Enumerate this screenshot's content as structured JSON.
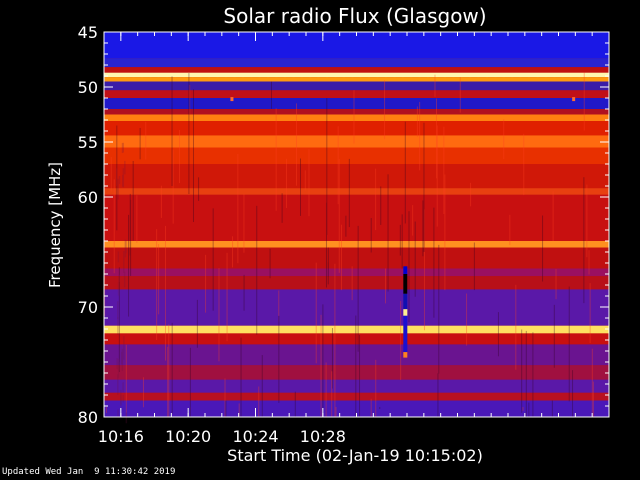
{
  "chart_data": {
    "type": "heatmap",
    "title": "Solar radio Flux (Glasgow)",
    "ylabel": "Frequency [MHz]",
    "xlabel": "Start Time (02-Jan-19 10:15:02)",
    "x_time_range_minutes": [
      0,
      30.0
    ],
    "x_ticks": [
      {
        "label": "10:16",
        "minutes": 1.0
      },
      {
        "label": "10:20",
        "minutes": 5.0
      },
      {
        "label": "10:24",
        "minutes": 9.0
      },
      {
        "label": "10:28",
        "minutes": 13.0
      }
    ],
    "y_range_mhz": [
      45,
      80
    ],
    "y_reversed": true,
    "y_ticks": [
      45,
      50,
      55,
      60,
      70,
      80
    ],
    "y_minor_step": 1,
    "frequency_bands": [
      {
        "from": 45.0,
        "to": 47.4,
        "color": "#1a18e6"
      },
      {
        "from": 47.4,
        "to": 48.2,
        "color": "#2a24d0"
      },
      {
        "from": 48.2,
        "to": 48.7,
        "color": "#c01010"
      },
      {
        "from": 48.7,
        "to": 49.1,
        "color": "#fff7b0"
      },
      {
        "from": 49.1,
        "to": 49.5,
        "color": "#ff9a10"
      },
      {
        "from": 49.5,
        "to": 50.3,
        "color": "#3a1ca8"
      },
      {
        "from": 50.3,
        "to": 51.0,
        "color": "#c01018"
      },
      {
        "from": 51.0,
        "to": 52.0,
        "color": "#2018c8"
      },
      {
        "from": 52.0,
        "to": 52.5,
        "color": "#b01020"
      },
      {
        "from": 52.5,
        "to": 53.1,
        "color": "#ff8010"
      },
      {
        "from": 53.1,
        "to": 54.4,
        "color": "#e02000"
      },
      {
        "from": 54.4,
        "to": 55.5,
        "color": "#ff6a10"
      },
      {
        "from": 55.5,
        "to": 57.0,
        "color": "#e83000"
      },
      {
        "from": 57.0,
        "to": 59.2,
        "color": "#d01808"
      },
      {
        "from": 59.2,
        "to": 59.8,
        "color": "#e84010"
      },
      {
        "from": 59.8,
        "to": 64.0,
        "color": "#c81010"
      },
      {
        "from": 64.0,
        "to": 64.6,
        "color": "#ff9020"
      },
      {
        "from": 64.6,
        "to": 66.5,
        "color": "#c01010"
      },
      {
        "from": 66.5,
        "to": 67.2,
        "color": "#9a1060"
      },
      {
        "from": 67.2,
        "to": 68.4,
        "color": "#b81018"
      },
      {
        "from": 68.4,
        "to": 71.7,
        "color": "#5a18a8"
      },
      {
        "from": 71.7,
        "to": 72.4,
        "color": "#ffe060"
      },
      {
        "from": 72.4,
        "to": 73.4,
        "color": "#c81010"
      },
      {
        "from": 73.4,
        "to": 75.3,
        "color": "#6a1490"
      },
      {
        "from": 75.3,
        "to": 76.6,
        "color": "#a01040"
      },
      {
        "from": 76.6,
        "to": 77.8,
        "color": "#5a18a8"
      },
      {
        "from": 77.8,
        "to": 78.5,
        "color": "#b81020"
      },
      {
        "from": 78.5,
        "to": 80.0,
        "color": "#4a18b8"
      }
    ],
    "features": [
      {
        "kind": "periodic-marks",
        "freq_mhz": 49.3,
        "color": "#ff9a10",
        "step_minutes": 0.5
      },
      {
        "kind": "dot",
        "time_minutes": 7.6,
        "freq_mhz": 51.1,
        "color": "#ff6a30"
      },
      {
        "kind": "dot",
        "time_minutes": 27.9,
        "freq_mhz": 51.1,
        "color": "#ff6a30"
      },
      {
        "kind": "vertical-streak",
        "time_minutes": 17.9,
        "from_mhz": 66.3,
        "to_mhz": 74.6,
        "segments": [
          {
            "from": 66.3,
            "to": 67.0,
            "color": "#0000d0"
          },
          {
            "from": 67.0,
            "to": 68.8,
            "color": "#000000"
          },
          {
            "from": 68.8,
            "to": 70.2,
            "color": "#1010b0"
          },
          {
            "from": 70.2,
            "to": 70.8,
            "color": "#fff090"
          },
          {
            "from": 70.8,
            "to": 74.1,
            "color": "#1a10d0"
          },
          {
            "from": 74.1,
            "to": 74.6,
            "color": "#ff8020"
          }
        ]
      }
    ]
  },
  "footer": {
    "updated": "Updated Wed Jan  9 11:30:42 2019"
  }
}
